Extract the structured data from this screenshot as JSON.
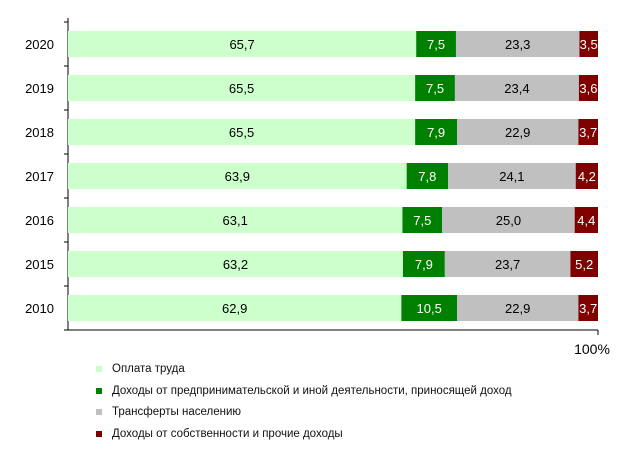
{
  "chart_data": {
    "type": "bar",
    "stacked": true,
    "orientation": "horizontal",
    "categories": [
      "2020",
      "2019",
      "2018",
      "2017",
      "2016",
      "2015",
      "2010"
    ],
    "series": [
      {
        "name": "Оплата труда",
        "color": "#ccffcc",
        "values": [
          65.7,
          65.5,
          65.5,
          63.9,
          63.1,
          63.2,
          62.9
        ],
        "labels": [
          "65,7",
          "65,5",
          "65,5",
          "63,9",
          "63,1",
          "63,2",
          "62,9"
        ]
      },
      {
        "name": "Доходы от предпринимательской и иной деятельности, приносящей доход",
        "color": "#008000",
        "values": [
          7.5,
          7.5,
          7.9,
          7.8,
          7.5,
          7.9,
          10.5
        ],
        "labels": [
          "7,5",
          "7,5",
          "7,9",
          "7,8",
          "7,5",
          "7,9",
          "10,5"
        ]
      },
      {
        "name": "Трансферты населению",
        "color": "#c0c0c0",
        "values": [
          23.3,
          23.4,
          22.9,
          24.1,
          25.0,
          23.7,
          22.9
        ],
        "labels": [
          "23,3",
          "23,4",
          "22,9",
          "24,1",
          "25,0",
          "23,7",
          "22,9"
        ]
      },
      {
        "name": "Доходы от собственности и прочие доходы",
        "color": "#800000",
        "values": [
          3.5,
          3.6,
          3.7,
          4.2,
          4.4,
          5.2,
          3.7
        ],
        "labels": [
          "3,5",
          "3,6",
          "3,7",
          "4,2",
          "4,4",
          "5,2",
          "3,7"
        ]
      }
    ],
    "xlim": [
      0,
      100
    ],
    "x_tick_label": "100%",
    "grid": false,
    "legend_position": "bottom"
  }
}
